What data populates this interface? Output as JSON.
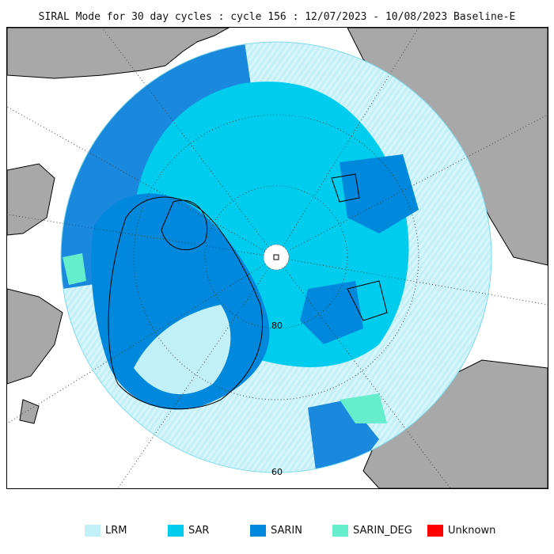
{
  "title": "SIRAL Mode for 30 day cycles : cycle 156 : 12/07/2023 - 10/08/2023 Baseline-E",
  "map": {
    "lat_labels": [
      "80",
      "60"
    ],
    "colors": {
      "ocean": "#ffffff",
      "land": "#a8a8a8",
      "lrm": "#c2f0f8",
      "sar": "#00ccee",
      "sarin": "#0088dd",
      "sarin_deg": "#66eecc",
      "unknown": "#ff0000"
    }
  },
  "legend": [
    {
      "label": "LRM",
      "color": "#c2f0f8"
    },
    {
      "label": "SAR",
      "color": "#00ccee"
    },
    {
      "label": "SARIN",
      "color": "#0088dd"
    },
    {
      "label": "SARIN_DEG",
      "color": "#66eecc"
    },
    {
      "label": "Unknown",
      "color": "#ff0000"
    }
  ]
}
